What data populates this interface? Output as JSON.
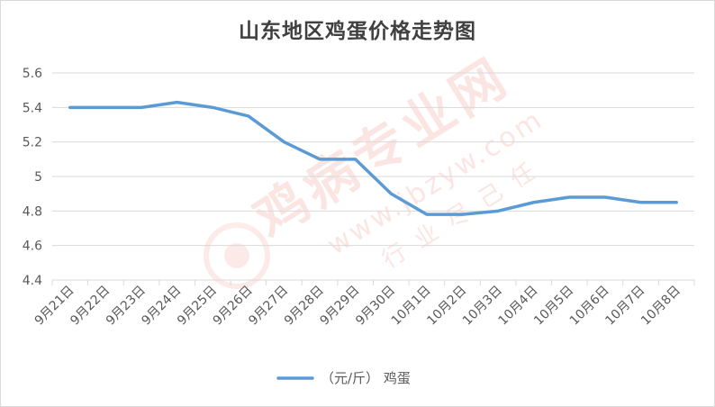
{
  "chart_data": {
    "type": "line",
    "title": "山东地区鸡蛋价格走势图",
    "categories": [
      "9月21日",
      "9月22日",
      "9月23日",
      "9月24日",
      "9月25日",
      "9月26日",
      "9月27日",
      "9月28日",
      "9月29日",
      "9月30日",
      "10月1日",
      "10月2日",
      "10月3日",
      "10月4日",
      "10月5日",
      "10月6日",
      "10月7日",
      "10月8日"
    ],
    "series": [
      {
        "name": "（元/斤） 鸡蛋",
        "color": "#5b9bd5",
        "values": [
          5.4,
          5.4,
          5.4,
          5.43,
          5.4,
          5.35,
          5.2,
          5.1,
          5.1,
          4.9,
          4.78,
          4.78,
          4.8,
          4.85,
          4.88,
          4.88,
          4.85,
          4.85
        ]
      }
    ],
    "ylim": [
      4.4,
      5.6
    ],
    "yticks": [
      "4.4",
      "4.6",
      "4.8",
      "5",
      "5.2",
      "5.4",
      "5.6"
    ],
    "ytick_values": [
      4.4,
      4.6,
      4.8,
      5.0,
      5.2,
      5.4,
      5.6
    ],
    "grid": true,
    "legend_position": "bottom",
    "xlabel": "",
    "ylabel": ""
  },
  "watermark": {
    "name": "鸡病专业网",
    "url": "www.jbzyw.com",
    "slogan": "行业尽己任"
  },
  "colors": {
    "line": "#5b9bd5",
    "grid": "#d9d9d9",
    "axis_text": "#595959",
    "title": "#404040",
    "watermark": "#e8412c"
  }
}
